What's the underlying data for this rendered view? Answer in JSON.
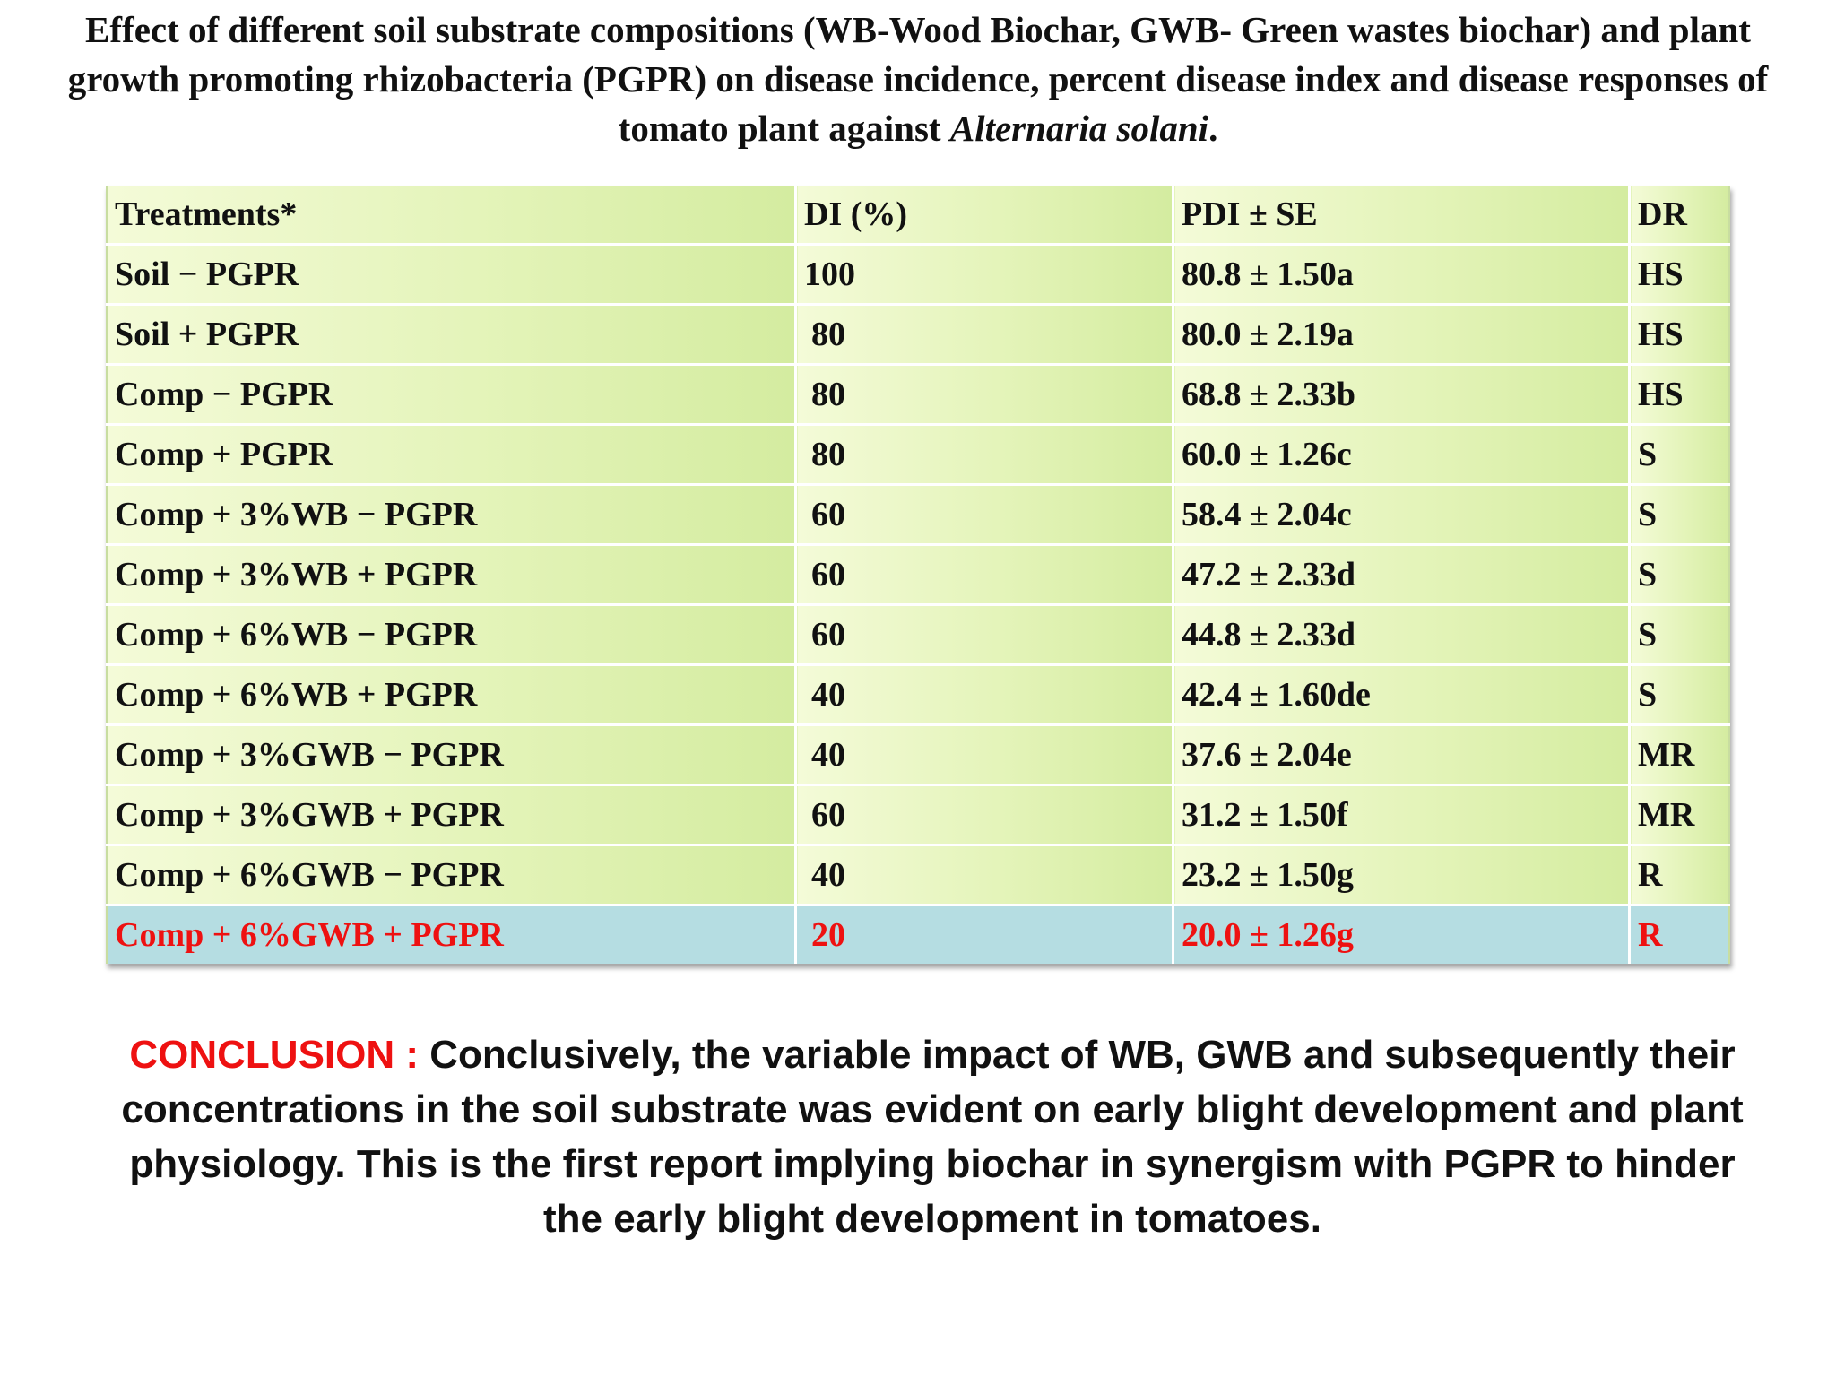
{
  "title": {
    "main": "Effect of different soil substrate compositions (WB-Wood Biochar, GWB- Green wastes biochar) and plant growth promoting rhizobacteria (PGPR) on disease incidence, percent disease index and disease responses of tomato plant against",
    "organism": "Alternaria solani",
    "end": "."
  },
  "table": {
    "headers": {
      "treatments": "Treatments*",
      "di": "DI (%)",
      "pdi": "PDI ± SE",
      "dr": "DR"
    },
    "rows": [
      {
        "treatment": "Soil − PGPR",
        "di": "100",
        "pdi": "80.8 ± 1.50a",
        "dr": "HS"
      },
      {
        "treatment": "Soil + PGPR",
        "di": "80",
        "pdi": "80.0 ± 2.19a",
        "dr": "HS"
      },
      {
        "treatment": "Comp − PGPR",
        "di": "80",
        "pdi": "68.8 ± 2.33b",
        "dr": "HS"
      },
      {
        "treatment": "Comp + PGPR",
        "di": "80",
        "pdi": "60.0 ± 1.26c",
        "dr": "S"
      },
      {
        "treatment": "Comp + 3%WB − PGPR",
        "di": "60",
        "pdi": "58.4 ± 2.04c",
        "dr": "S"
      },
      {
        "treatment": "Comp + 3%WB + PGPR",
        "di": "60",
        "pdi": "47.2 ± 2.33d",
        "dr": "S"
      },
      {
        "treatment": "Comp + 6%WB − PGPR",
        "di": "60",
        "pdi": "44.8 ± 2.33d",
        "dr": "S"
      },
      {
        "treatment": "Comp + 6%WB + PGPR",
        "di": "40",
        "pdi": "42.4 ± 1.60de",
        "dr": "S"
      },
      {
        "treatment": "Comp + 3%GWB − PGPR",
        "di": "40",
        "pdi": "37.6 ± 2.04e",
        "dr": "MR"
      },
      {
        "treatment": "Comp + 3%GWB + PGPR",
        "di": "60",
        "pdi": "31.2 ± 1.50f",
        "dr": "MR"
      },
      {
        "treatment": "Comp + 6%GWB − PGPR",
        "di": "40",
        "pdi": "23.2 ± 1.50g",
        "dr": "R"
      },
      {
        "treatment": "Comp + 6%GWB + PGPR",
        "di": "20",
        "pdi": "20.0 ± 1.26g",
        "dr": "R"
      }
    ],
    "highlight_color": "#ee1111",
    "highlight_background": "#b5dde2",
    "row_background": "#e2f3b6"
  },
  "conclusion": {
    "label": "CONCLUSION :",
    "text": "Conclusively, the variable impact of WB, GWB and subsequently their concentrations in the soil substrate was evident on early blight development and plant physiology. This is the first report implying biochar in synergism with PGPR to hinder the early blight development in tomatoes."
  }
}
